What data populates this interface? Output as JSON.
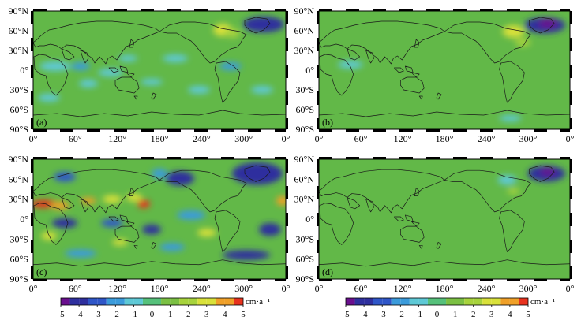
{
  "panels": [
    {
      "label": "(a)",
      "lat_ticks": [
        "90°N",
        "60°N",
        "30°N",
        "0°",
        "30°S",
        "60°S",
        "90°S"
      ],
      "lon_ticks": [
        "0°",
        "60°",
        "120°",
        "180°",
        "240°",
        "300°",
        "0°"
      ]
    },
    {
      "label": "(b)",
      "lat_ticks": [
        "90°N",
        "60°N",
        "30°N",
        "0°",
        "30°S",
        "60°S",
        "90°S"
      ],
      "lon_ticks": [
        "0°",
        "60°",
        "120°",
        "180°",
        "240°",
        "300°",
        "0°"
      ]
    },
    {
      "label": "(c)",
      "lat_ticks": [
        "90°N",
        "60°N",
        "30°N",
        "0°",
        "30°S",
        "60°S",
        "90°S"
      ],
      "lon_ticks": [
        "0°",
        "60°",
        "120°",
        "180°",
        "240°",
        "300°",
        "0°"
      ]
    },
    {
      "label": "(d)",
      "lat_ticks": [
        "90°N",
        "60°N",
        "30°N",
        "0°",
        "30°S",
        "60°S",
        "90°S"
      ],
      "lon_ticks": [
        "0°",
        "60°",
        "120°",
        "180°",
        "240°",
        "300°",
        "0°"
      ]
    }
  ],
  "colorbars": [
    {
      "unit": "cm·a⁻¹",
      "ticks": [
        "-5",
        "-4",
        "-3",
        "-2",
        "-1",
        "0",
        "1",
        "2",
        "3",
        "4",
        "5"
      ]
    },
    {
      "unit": "cm·a⁻¹",
      "ticks": [
        "-5",
        "-4",
        "-3",
        "-2",
        "-1",
        "0",
        "1",
        "2",
        "3",
        "4",
        "5"
      ]
    }
  ],
  "colorbar_colors": [
    "#6a0f8e",
    "#2e2f9e",
    "#2f56c8",
    "#3b9bdb",
    "#5ec9d6",
    "#56c17b",
    "#7bc043",
    "#a7d33c",
    "#d9e13a",
    "#f0a028",
    "#e8321e"
  ],
  "map_background": "#62b848"
}
